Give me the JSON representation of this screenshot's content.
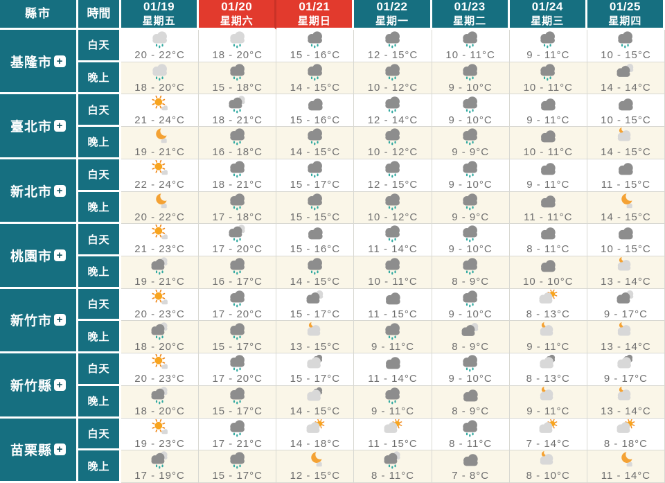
{
  "expand_symbol": "+",
  "colors": {
    "teal": "#166f80",
    "red": "#e23a2d",
    "red_divider": "#c93227",
    "day_bg": "#ffffff",
    "night_bg": "#faf6e8",
    "border": "#d8d8d2",
    "temp_text": "#6f6f6f",
    "cloud_dark": "#8d8d8d",
    "cloud_light": "#d8d8d8",
    "rain_drop": "#2fa89f",
    "sun": "#f8a41e",
    "sun_ray": "#f0881a",
    "moon": "#f4a234"
  },
  "header": {
    "county_label": "縣市",
    "time_label": "時間",
    "dates": [
      {
        "date": "01/19",
        "weekday": "星期五",
        "highlight": false
      },
      {
        "date": "01/20",
        "weekday": "星期六",
        "highlight": true
      },
      {
        "date": "01/21",
        "weekday": "星期日",
        "highlight": true
      },
      {
        "date": "01/22",
        "weekday": "星期一",
        "highlight": false
      },
      {
        "date": "01/23",
        "weekday": "星期二",
        "highlight": false
      },
      {
        "date": "01/24",
        "weekday": "星期三",
        "highlight": false
      },
      {
        "date": "01/25",
        "weekday": "星期四",
        "highlight": false
      }
    ]
  },
  "time_rows": {
    "day": "白天",
    "night": "晚上"
  },
  "cities": [
    {
      "name": "基隆市",
      "day": [
        {
          "icon": "light-rain",
          "temp": "20 - 22°C"
        },
        {
          "icon": "light-rain",
          "temp": "18 - 20°C"
        },
        {
          "icon": "rain",
          "temp": "15 - 16°C"
        },
        {
          "icon": "rain",
          "temp": "12 - 15°C"
        },
        {
          "icon": "rain",
          "temp": "10 - 11°C"
        },
        {
          "icon": "rain",
          "temp": "9 - 11°C"
        },
        {
          "icon": "rain",
          "temp": "10 - 15°C"
        }
      ],
      "night": [
        {
          "icon": "light-rain",
          "temp": "18 - 20°C"
        },
        {
          "icon": "rain",
          "temp": "15 - 18°C"
        },
        {
          "icon": "rain",
          "temp": "14 - 15°C"
        },
        {
          "icon": "rain",
          "temp": "10 - 12°C"
        },
        {
          "icon": "rain",
          "temp": "9 - 10°C"
        },
        {
          "icon": "rain",
          "temp": "10 - 11°C"
        },
        {
          "icon": "mostly-cloudy",
          "temp": "14 - 14°C"
        }
      ]
    },
    {
      "name": "臺北市",
      "day": [
        {
          "icon": "sunny",
          "temp": "21 - 24°C"
        },
        {
          "icon": "rain-cloudy",
          "temp": "18 - 21°C"
        },
        {
          "icon": "cloudy",
          "temp": "15 - 16°C"
        },
        {
          "icon": "rain",
          "temp": "12 - 14°C"
        },
        {
          "icon": "rain",
          "temp": "9 - 10°C"
        },
        {
          "icon": "cloudy",
          "temp": "9 - 11°C"
        },
        {
          "icon": "cloudy",
          "temp": "10 - 15°C"
        }
      ],
      "night": [
        {
          "icon": "clear-night",
          "temp": "19 - 21°C"
        },
        {
          "icon": "rain",
          "temp": "16 - 18°C"
        },
        {
          "icon": "rain",
          "temp": "14 - 15°C"
        },
        {
          "icon": "rain",
          "temp": "10 - 12°C"
        },
        {
          "icon": "rain",
          "temp": "9 - 9°C"
        },
        {
          "icon": "cloudy",
          "temp": "10 - 11°C"
        },
        {
          "icon": "partly-cloudy-night",
          "temp": "14 - 15°C"
        }
      ]
    },
    {
      "name": "新北市",
      "day": [
        {
          "icon": "sunny",
          "temp": "22 - 24°C"
        },
        {
          "icon": "rain",
          "temp": "18 - 21°C"
        },
        {
          "icon": "rain",
          "temp": "15 - 17°C"
        },
        {
          "icon": "rain",
          "temp": "12 - 15°C"
        },
        {
          "icon": "rain",
          "temp": "9 - 10°C"
        },
        {
          "icon": "cloudy",
          "temp": "9 - 11°C"
        },
        {
          "icon": "cloudy",
          "temp": "11 - 15°C"
        }
      ],
      "night": [
        {
          "icon": "clear-night",
          "temp": "20 - 22°C"
        },
        {
          "icon": "rain",
          "temp": "17 - 18°C"
        },
        {
          "icon": "rain",
          "temp": "15 - 15°C"
        },
        {
          "icon": "rain",
          "temp": "10 - 12°C"
        },
        {
          "icon": "rain",
          "temp": "9 - 9°C"
        },
        {
          "icon": "cloudy",
          "temp": "11 - 11°C"
        },
        {
          "icon": "clear-night",
          "temp": "14 - 15°C"
        }
      ]
    },
    {
      "name": "桃園市",
      "day": [
        {
          "icon": "sunny",
          "temp": "21 - 23°C"
        },
        {
          "icon": "rain-cloudy",
          "temp": "17 - 20°C"
        },
        {
          "icon": "cloudy",
          "temp": "15 - 16°C"
        },
        {
          "icon": "rain",
          "temp": "11 - 14°C"
        },
        {
          "icon": "rain",
          "temp": "9 - 10°C"
        },
        {
          "icon": "cloudy",
          "temp": "8 - 11°C"
        },
        {
          "icon": "cloudy",
          "temp": "10 - 15°C"
        }
      ],
      "night": [
        {
          "icon": "rain-cloudy",
          "temp": "19 - 21°C"
        },
        {
          "icon": "rain",
          "temp": "16 - 17°C"
        },
        {
          "icon": "rain",
          "temp": "14 - 15°C"
        },
        {
          "icon": "rain",
          "temp": "10 - 11°C"
        },
        {
          "icon": "rain",
          "temp": "8 - 9°C"
        },
        {
          "icon": "cloudy",
          "temp": "10 - 10°C"
        },
        {
          "icon": "partly-cloudy-night",
          "temp": "13 - 14°C"
        }
      ]
    },
    {
      "name": "新竹市",
      "day": [
        {
          "icon": "sunny",
          "temp": "20 - 23°C"
        },
        {
          "icon": "rain",
          "temp": "17 - 20°C"
        },
        {
          "icon": "mostly-cloudy",
          "temp": "15 - 17°C"
        },
        {
          "icon": "cloudy",
          "temp": "11 - 15°C"
        },
        {
          "icon": "rain",
          "temp": "9 - 10°C"
        },
        {
          "icon": "partly-sunny",
          "temp": "8 - 13°C"
        },
        {
          "icon": "mostly-cloudy",
          "temp": "9 - 17°C"
        }
      ],
      "night": [
        {
          "icon": "rain-cloudy",
          "temp": "18 - 20°C"
        },
        {
          "icon": "rain",
          "temp": "15 - 17°C"
        },
        {
          "icon": "partly-cloudy-night",
          "temp": "13 - 15°C"
        },
        {
          "icon": "rain",
          "temp": "9 - 11°C"
        },
        {
          "icon": "mostly-cloudy",
          "temp": "8 - 9°C"
        },
        {
          "icon": "partly-cloudy-night",
          "temp": "9 - 11°C"
        },
        {
          "icon": "partly-cloudy-night",
          "temp": "13 - 14°C"
        }
      ]
    },
    {
      "name": "新竹縣",
      "day": [
        {
          "icon": "sunny",
          "temp": "20 - 23°C"
        },
        {
          "icon": "rain",
          "temp": "17 - 20°C"
        },
        {
          "icon": "partly-cloudy",
          "temp": "15 - 17°C"
        },
        {
          "icon": "cloudy",
          "temp": "11 - 14°C"
        },
        {
          "icon": "rain",
          "temp": "9 - 10°C"
        },
        {
          "icon": "partly-cloudy",
          "temp": "8 - 13°C"
        },
        {
          "icon": "partly-cloudy",
          "temp": "9 - 17°C"
        }
      ],
      "night": [
        {
          "icon": "rain-cloudy",
          "temp": "18 - 20°C"
        },
        {
          "icon": "rain",
          "temp": "15 - 17°C"
        },
        {
          "icon": "partly-cloudy",
          "temp": "14 - 15°C"
        },
        {
          "icon": "rain",
          "temp": "9 - 11°C"
        },
        {
          "icon": "cloudy",
          "temp": "8 - 9°C"
        },
        {
          "icon": "partly-cloudy-night",
          "temp": "9 - 11°C"
        },
        {
          "icon": "partly-cloudy-night",
          "temp": "13 - 14°C"
        }
      ]
    },
    {
      "name": "苗栗縣",
      "day": [
        {
          "icon": "sunny",
          "temp": "19 - 23°C"
        },
        {
          "icon": "rain",
          "temp": "17 - 21°C"
        },
        {
          "icon": "partly-sunny",
          "temp": "14 - 18°C"
        },
        {
          "icon": "partly-sunny",
          "temp": "11 - 15°C"
        },
        {
          "icon": "rain",
          "temp": "8 - 11°C"
        },
        {
          "icon": "partly-sunny",
          "temp": "7 - 14°C"
        },
        {
          "icon": "partly-sunny",
          "temp": "8 - 18°C"
        }
      ],
      "night": [
        {
          "icon": "rain-cloudy",
          "temp": "17 - 19°C"
        },
        {
          "icon": "rain",
          "temp": "15 - 17°C"
        },
        {
          "icon": "clear-night",
          "temp": "12 - 15°C"
        },
        {
          "icon": "rain-cloudy",
          "temp": "8 - 11°C"
        },
        {
          "icon": "cloudy",
          "temp": "7 - 8°C"
        },
        {
          "icon": "partly-cloudy-night",
          "temp": "8 - 10°C"
        },
        {
          "icon": "clear-night",
          "temp": "11 - 14°C"
        }
      ]
    }
  ]
}
